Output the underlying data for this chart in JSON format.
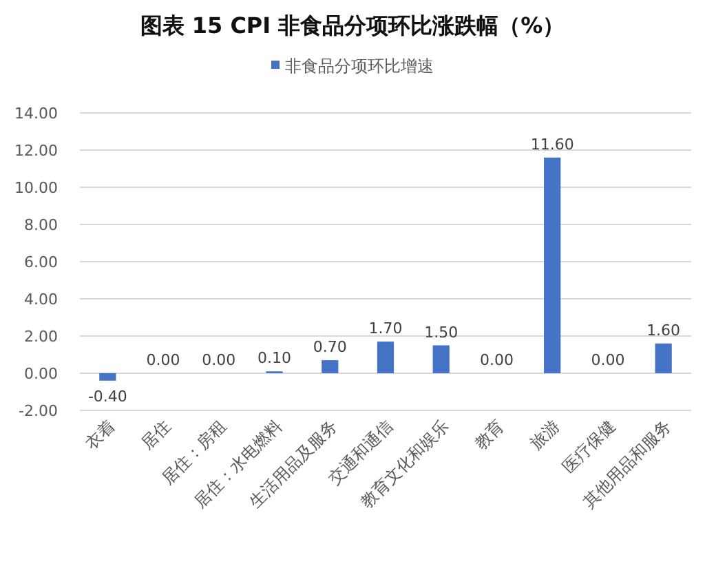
{
  "chart_data": {
    "type": "bar",
    "title": "图表 15  CPI 非食品分项环比涨跌幅（%）",
    "categories": [
      "衣着",
      "居住",
      "居住：房租",
      "居住：水电燃料",
      "生活用品及服务",
      "交通和通信",
      "教育文化和娱乐",
      "教育",
      "旅游",
      "医疗保健",
      "其他用品和服务"
    ],
    "series": [
      {
        "name": "非食品分项环比增速",
        "color": "#4472c4",
        "values": [
          -0.4,
          0,
          0,
          0.1,
          0.7,
          1.7,
          1.5,
          0,
          11.6,
          0,
          1.6
        ],
        "value_labels": [
          "-0.40",
          "0.00",
          "0.00",
          "0.10",
          "0.70",
          "1.70",
          "1.50",
          "0.00",
          "11.60",
          "0.00",
          "1.60"
        ]
      }
    ],
    "ylim": [
      -2,
      14
    ],
    "yticks": [
      {
        "value": -2,
        "label": "-2.00"
      },
      {
        "value": 0,
        "label": "0.00"
      },
      {
        "value": 2,
        "label": "2.00"
      },
      {
        "value": 4,
        "label": "4.00"
      },
      {
        "value": 6,
        "label": "6.00"
      },
      {
        "value": 8,
        "label": "8.00"
      },
      {
        "value": 10,
        "label": "10.00"
      },
      {
        "value": 12,
        "label": "12.00"
      },
      {
        "value": 14,
        "label": "14.00"
      }
    ],
    "grid": "y",
    "legend": "top"
  }
}
